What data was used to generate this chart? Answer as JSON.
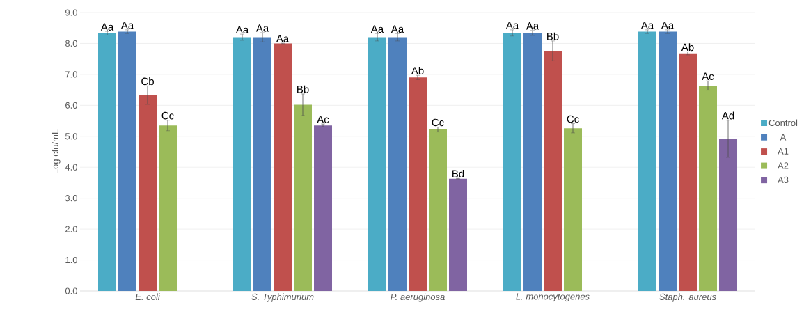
{
  "chart_data": {
    "type": "bar",
    "ylabel": "Log cfu/mL",
    "categories": [
      "E. coli",
      "S. Typhimurium",
      "P. aeruginosa",
      "L. monocytogenes",
      "Staph. aureus"
    ],
    "series": [
      {
        "name": "Control",
        "color": "#4bacc6",
        "values": [
          8.33,
          8.2,
          8.2,
          8.34,
          8.38
        ],
        "errors": [
          0.06,
          0.1,
          0.12,
          0.1,
          0.06
        ],
        "value_labels": [
          "Aa",
          "Aa",
          "Aa",
          "Aa",
          "Aa"
        ]
      },
      {
        "name": "A",
        "color": "#4f81bd",
        "values": [
          8.38,
          8.2,
          8.2,
          8.34,
          8.38
        ],
        "errors": [
          0.06,
          0.15,
          0.12,
          0.08,
          0.06
        ],
        "value_labels": [
          "Aa",
          "Aa",
          "Aa",
          "Aa",
          "Aa"
        ]
      },
      {
        "name": "A1",
        "color": "#c0504d",
        "values": [
          6.33,
          8.0,
          6.9,
          7.76,
          7.68
        ],
        "errors": [
          0.3,
          0.01,
          0.07,
          0.32,
          0.05
        ],
        "value_labels": [
          "Cb",
          "Aa",
          "Ab",
          "Bb",
          "Ab"
        ]
      },
      {
        "name": "A2",
        "color": "#9bbb59",
        "values": [
          5.35,
          6.02,
          5.22,
          5.26,
          6.64
        ],
        "errors": [
          0.17,
          0.35,
          0.08,
          0.15,
          0.15
        ],
        "value_labels": [
          "Cc",
          "Bb",
          "Cc",
          "Cc",
          "Ac"
        ]
      },
      {
        "name": "A3",
        "color": "#8064a2",
        "values": [
          0,
          5.35,
          3.63,
          0,
          4.92
        ],
        "errors": [
          null,
          0.05,
          0.01,
          null,
          0.6
        ],
        "value_labels": [
          null,
          "Ac",
          "Bd",
          null,
          "Ad"
        ]
      }
    ],
    "ylim": [
      0,
      9
    ],
    "yticks": [
      {
        "value": 0,
        "label": "0.0"
      },
      {
        "value": 1,
        "label": "1.0"
      },
      {
        "value": 2,
        "label": "2.0"
      },
      {
        "value": 3,
        "label": "3.0"
      },
      {
        "value": 4,
        "label": "4.0"
      },
      {
        "value": 5,
        "label": "5.0"
      },
      {
        "value": 6,
        "label": "6.0"
      },
      {
        "value": 7,
        "label": "7.0"
      },
      {
        "value": 8,
        "label": "8.0"
      },
      {
        "value": 9,
        "label": "9.0"
      }
    ],
    "grid": "y",
    "legend": "right"
  }
}
